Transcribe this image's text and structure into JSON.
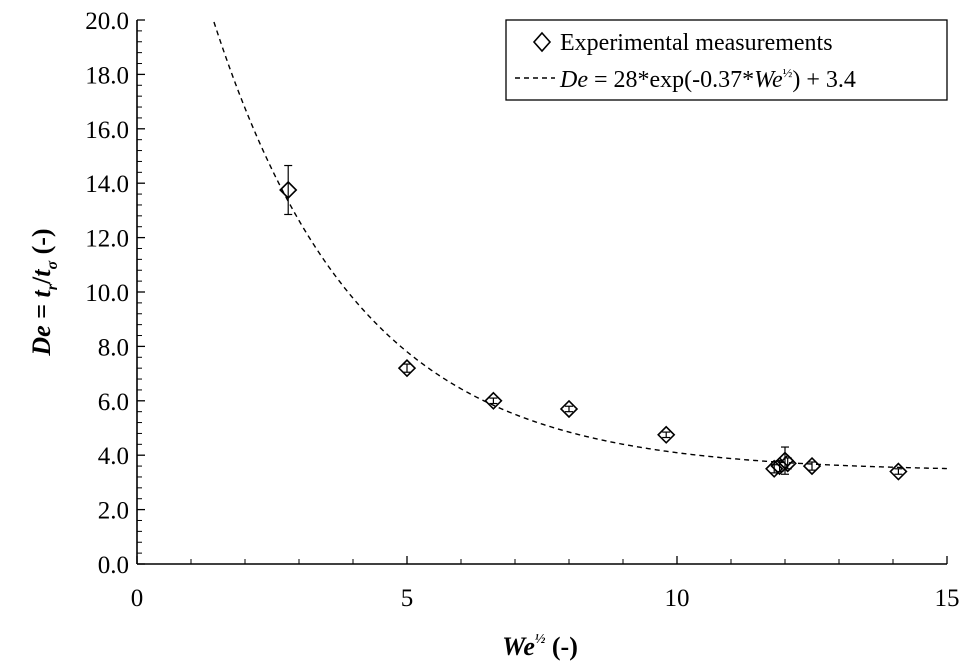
{
  "chart_data": {
    "type": "scatter",
    "xlim": [
      0,
      15
    ],
    "ylim": [
      0,
      20
    ],
    "x_ticks": [
      "0",
      "5",
      "10",
      "15"
    ],
    "y_ticks": [
      "0.0",
      "2.0",
      "4.0",
      "6.0",
      "8.0",
      "10.0",
      "12.0",
      "14.0",
      "16.0",
      "18.0",
      "20.0"
    ],
    "xlabel": {
      "main": "We",
      "sup": "½",
      "unit": " (-)"
    },
    "ylabel": {
      "de": "De",
      "eq": " = ",
      "t1": "t",
      "sub1": "r",
      "slash": "/",
      "t2": "t",
      "sub2": "σ",
      "unit": " (-)"
    },
    "legend": {
      "position": "top-right",
      "markers_label": "Experimental measurements",
      "fit_label": {
        "de": "De",
        "mid": " = 28*exp(-0.37*",
        "we": "We",
        "sup": "½",
        "end": ") + 3.4"
      }
    },
    "series": [
      {
        "marker": "open-diamond",
        "points": [
          {
            "x": 2.8,
            "y": 13.75,
            "err": 0.9
          },
          {
            "x": 5.0,
            "y": 7.2,
            "err": 0.15
          },
          {
            "x": 6.6,
            "y": 6.0,
            "err": 0.1
          },
          {
            "x": 8.0,
            "y": 5.7,
            "err": 0.1
          },
          {
            "x": 9.8,
            "y": 4.75,
            "err": 0.1
          },
          {
            "x": 11.8,
            "y": 3.5,
            "err": 0.15
          },
          {
            "x": 11.9,
            "y": 3.6,
            "err": 0.2
          },
          {
            "x": 12.0,
            "y": 3.8,
            "err": 0.5
          },
          {
            "x": 12.05,
            "y": 3.7,
            "err": 0.2
          },
          {
            "x": 12.5,
            "y": 3.6,
            "err": 0.15
          },
          {
            "x": 14.1,
            "y": 3.4,
            "err": 0.1
          }
        ]
      },
      {
        "style": "dashed",
        "fit": {
          "a": 28,
          "b": 0.37,
          "c": 3.4
        }
      }
    ],
    "grid": false
  }
}
